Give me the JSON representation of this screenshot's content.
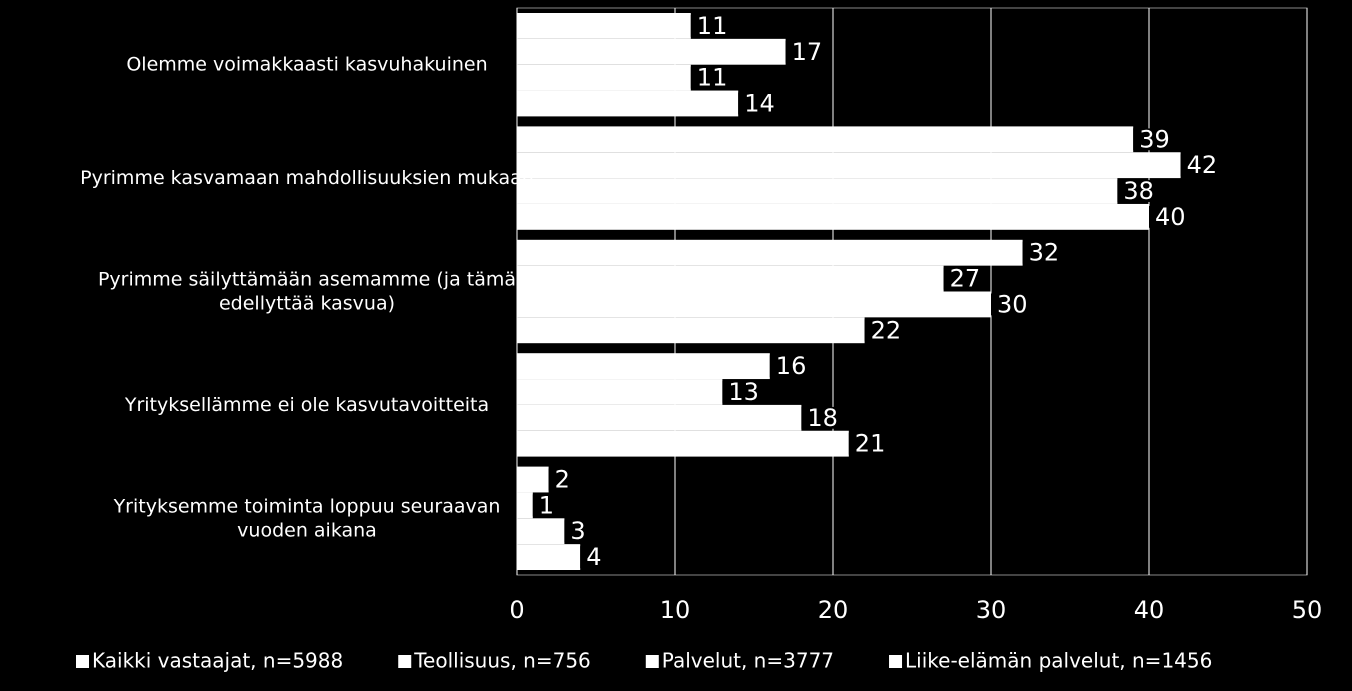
{
  "chart_data": {
    "type": "hbar",
    "categories": [
      "Olemme voimakkaasti kasvuhakuinen",
      "Pyrimme kasvamaan mahdollisuuksien mukaan",
      "Pyrimme säilyttämään asemamme (ja tämä\nedellyttää kasvua)",
      "Yrityksellämme ei ole kasvutavoitteita",
      "Yrityksemme toiminta loppuu seuraavan\nvuoden aikana"
    ],
    "series": [
      {
        "name": "Kaikki vastaajat, n=5988",
        "color": "#ffffff",
        "values": [
          11,
          39,
          32,
          16,
          2
        ]
      },
      {
        "name": "Teollisuus, n=756",
        "color": "#ffffff",
        "values": [
          17,
          42,
          27,
          13,
          1
        ]
      },
      {
        "name": "Palvelut, n=3777",
        "color": "#ffffff",
        "values": [
          11,
          38,
          30,
          18,
          3
        ]
      },
      {
        "name": "Liike-elämän palvelut, n=1456",
        "color": "#ffffff",
        "values": [
          14,
          40,
          22,
          21,
          4
        ]
      }
    ],
    "xlim": [
      0,
      50
    ],
    "xticks": [
      0,
      10,
      20,
      30,
      40,
      50
    ],
    "grid": true,
    "legend": "bottom"
  }
}
